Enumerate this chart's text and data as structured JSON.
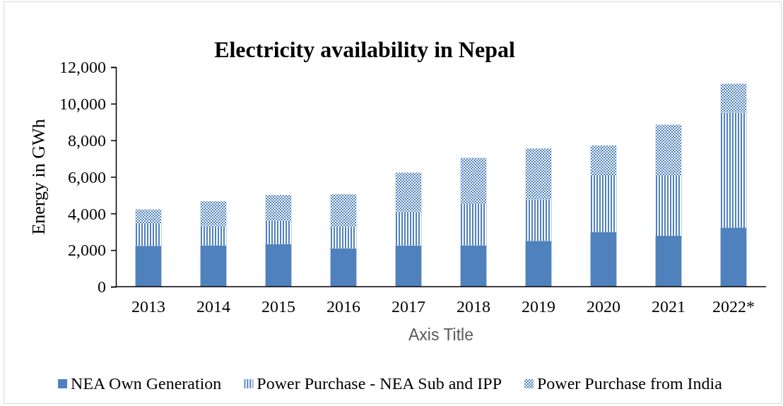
{
  "chart_data": {
    "type": "bar",
    "title": "Electricity availability in Nepal",
    "xlabel": "Axis Title",
    "ylabel": "Energy in GWh",
    "categories": [
      "2013",
      "2014",
      "2015",
      "2016",
      "2017",
      "2018",
      "2019",
      "2020",
      "2021",
      "2022*"
    ],
    "series": [
      {
        "name": "NEA Own Generation",
        "color": "#4f81bd",
        "values": [
          2230,
          2260,
          2320,
          2090,
          2250,
          2260,
          2500,
          2990,
          2780,
          3230
        ]
      },
      {
        "name": "Power Purchase - NEA Sub and IPP",
        "color": "#4f81bd",
        "values": [
          1240,
          1070,
          1290,
          1170,
          1850,
          2220,
          2260,
          3030,
          3280,
          6290
        ]
      },
      {
        "name": "Power Purchase from India",
        "color": "#4f81bd",
        "values": [
          750,
          1340,
          1400,
          1790,
          2130,
          2560,
          2790,
          1700,
          2790,
          1570
        ]
      }
    ],
    "stacked": true,
    "ylim": [
      0,
      12000
    ],
    "yticks": [
      0,
      {
        "value": 2000,
        "label": "2,000"
      },
      {
        "value": 4000,
        "label": "4,000"
      },
      {
        "value": 6000,
        "label": "6,000"
      },
      {
        "value": 8000,
        "label": "8,000"
      },
      {
        "value": 10000,
        "label": "10,000"
      },
      {
        "value": 12000,
        "label": "12,000"
      }
    ],
    "grid": false,
    "legend": "bottom"
  }
}
